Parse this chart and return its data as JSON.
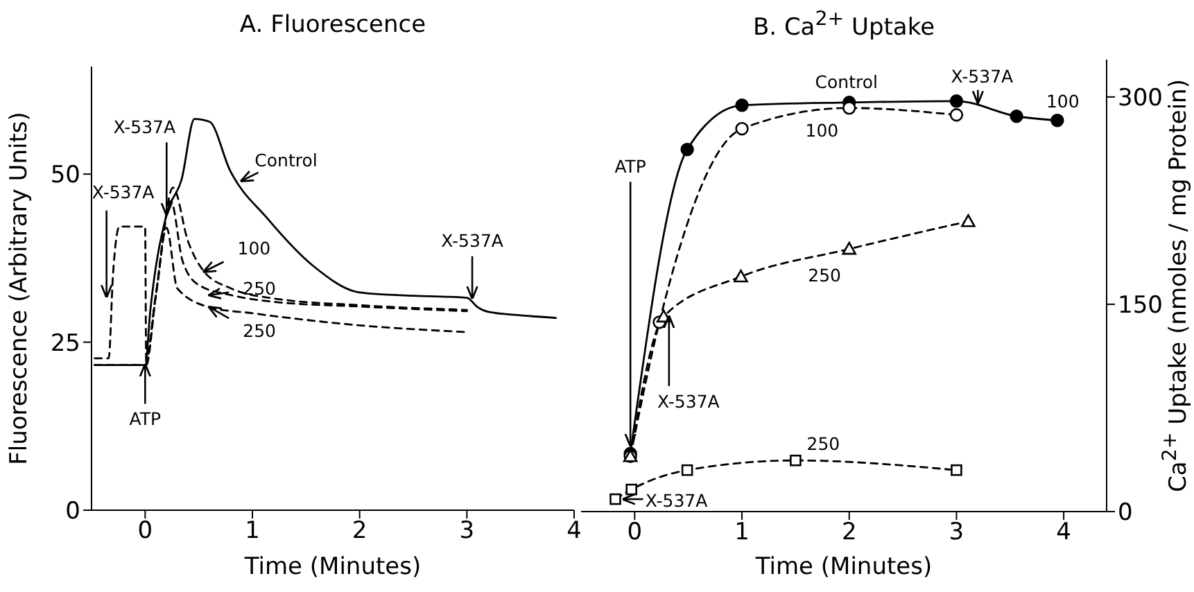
{
  "chart_data": [
    {
      "type": "line",
      "title": "A. Fluorescence",
      "xlabel": "Time (Minutes)",
      "ylabel": "Fluorescence (Arbitrary Units)",
      "xlim": [
        -0.5,
        4
      ],
      "xticks": [
        0,
        1,
        2,
        3,
        4
      ],
      "ylim": [
        0,
        66
      ],
      "yticks": [
        0,
        25,
        50
      ],
      "marker": "none",
      "series": [
        {
          "color": "#000000",
          "line_style": "solid",
          "x": [
            -0.47,
            0,
            0.05,
            0.2,
            0.34,
            0.46,
            0.6,
            0.79,
            1.14,
            1.57,
            2.0,
            2.5,
            3.0,
            3.1,
            3.2,
            3.5,
            3.83
          ],
          "values": [
            21.6,
            21.6,
            30,
            44,
            49.2,
            58.2,
            57.8,
            50.6,
            43.4,
            36.3,
            32.4,
            31.9,
            31.6,
            30.2,
            29.5,
            29,
            28.6
          ]
        },
        {
          "color": "#000000",
          "line_style": "dashed",
          "x": [
            -0.47,
            0,
            0.1,
            0.26,
            0.4,
            0.55,
            0.8,
            1.2,
            2,
            3
          ],
          "values": [
            21.6,
            21.6,
            32,
            48,
            40,
            35.5,
            33,
            31.5,
            30.5,
            29.8
          ]
        },
        {
          "color": "#000000",
          "line_style": "dashed",
          "x": [
            -0.47,
            0,
            0.1,
            0.24,
            0.35,
            0.5,
            0.8,
            1.2,
            2,
            3
          ],
          "values": [
            21.6,
            21.6,
            32,
            46,
            37,
            33.5,
            32,
            31,
            30.3,
            29.6
          ]
        },
        {
          "color": "#000000",
          "line_style": "dashed",
          "x": [
            -0.47,
            -0.34,
            -0.3,
            -0.24,
            0,
            0.01,
            0.1,
            0.2,
            0.3,
            0.6,
            1,
            2,
            3
          ],
          "values": [
            22.6,
            22.6,
            35,
            42.2,
            42.2,
            21.6,
            32,
            42,
            33,
            30.2,
            29.3,
            27.5,
            26.5
          ]
        }
      ],
      "annotations": [
        {
          "text": "X-537A",
          "x": -0.36,
          "y": 31.8
        },
        {
          "text": "X-537A",
          "x": 0.2,
          "y": 44
        },
        {
          "text": "Control",
          "x": 0.9,
          "y": 49
        },
        {
          "text": "100",
          "x": 0.55,
          "y": 35.5
        },
        {
          "text": "250",
          "x": 0.6,
          "y": 32
        },
        {
          "text": "250",
          "x": 0.6,
          "y": 30.2
        },
        {
          "text": "X-537A",
          "x": 3.05,
          "y": 31.6
        },
        {
          "text": "ATP",
          "x": 0,
          "y": 21.6
        }
      ]
    },
    {
      "type": "line",
      "title": "B. Ca$^{2+}$ Uptake",
      "xlabel": "Time (Minutes)",
      "ylabel": "Ca$^{2+}$ Uptake (nmoles / mg Protein)",
      "xlim": [
        -0.5,
        4.4
      ],
      "xticks": [
        0,
        1,
        2,
        3,
        4
      ],
      "ylim": [
        0,
        327
      ],
      "yticks": [
        0,
        150,
        300
      ],
      "series": [
        {
          "color": "#000000",
          "line_style": "solid",
          "marker": "circle",
          "x": [
            -0.04,
            0.49,
            1,
            2,
            3,
            3.56,
            3.94
          ],
          "values": [
            42,
            262,
            294,
            296,
            297,
            286,
            283
          ]
        },
        {
          "color": "#000000",
          "line_style": "dashed",
          "marker": "circle",
          "x": [
            -0.04,
            0.23,
            1,
            2,
            3
          ],
          "values": [
            40,
            137,
            277,
            292,
            287
          ]
        },
        {
          "color": "#000000",
          "line_style": "dashed",
          "marker": "triangle",
          "x": [
            -0.04,
            0.27,
            0.99,
            2,
            3.11
          ],
          "values": [
            40,
            141,
            170,
            190,
            210
          ]
        },
        {
          "color": "#000000",
          "line_style": "dashed",
          "marker": "square",
          "x": [
            -0.18,
            -0.03,
            0.49,
            1.5,
            3
          ],
          "values": [
            9,
            16,
            30,
            37,
            30
          ]
        }
      ],
      "annotations": [
        {
          "text": "ATP",
          "x": -0.04,
          "y": 42
        },
        {
          "text": "X-537A",
          "x": 0.32,
          "y": 141
        },
        {
          "text": "Control",
          "x": 2,
          "y": 296
        },
        {
          "text": "100",
          "x": 1.72,
          "y": 291
        },
        {
          "text": "X-537A",
          "x": 3.2,
          "y": 296
        },
        {
          "text": "100",
          "x": 3.94,
          "y": 283
        },
        {
          "text": "250",
          "x": 1.77,
          "y": 186
        },
        {
          "text": "250",
          "x": 1.5,
          "y": 37
        },
        {
          "text": "X-537A",
          "x": -0.18,
          "y": 9
        }
      ]
    }
  ]
}
